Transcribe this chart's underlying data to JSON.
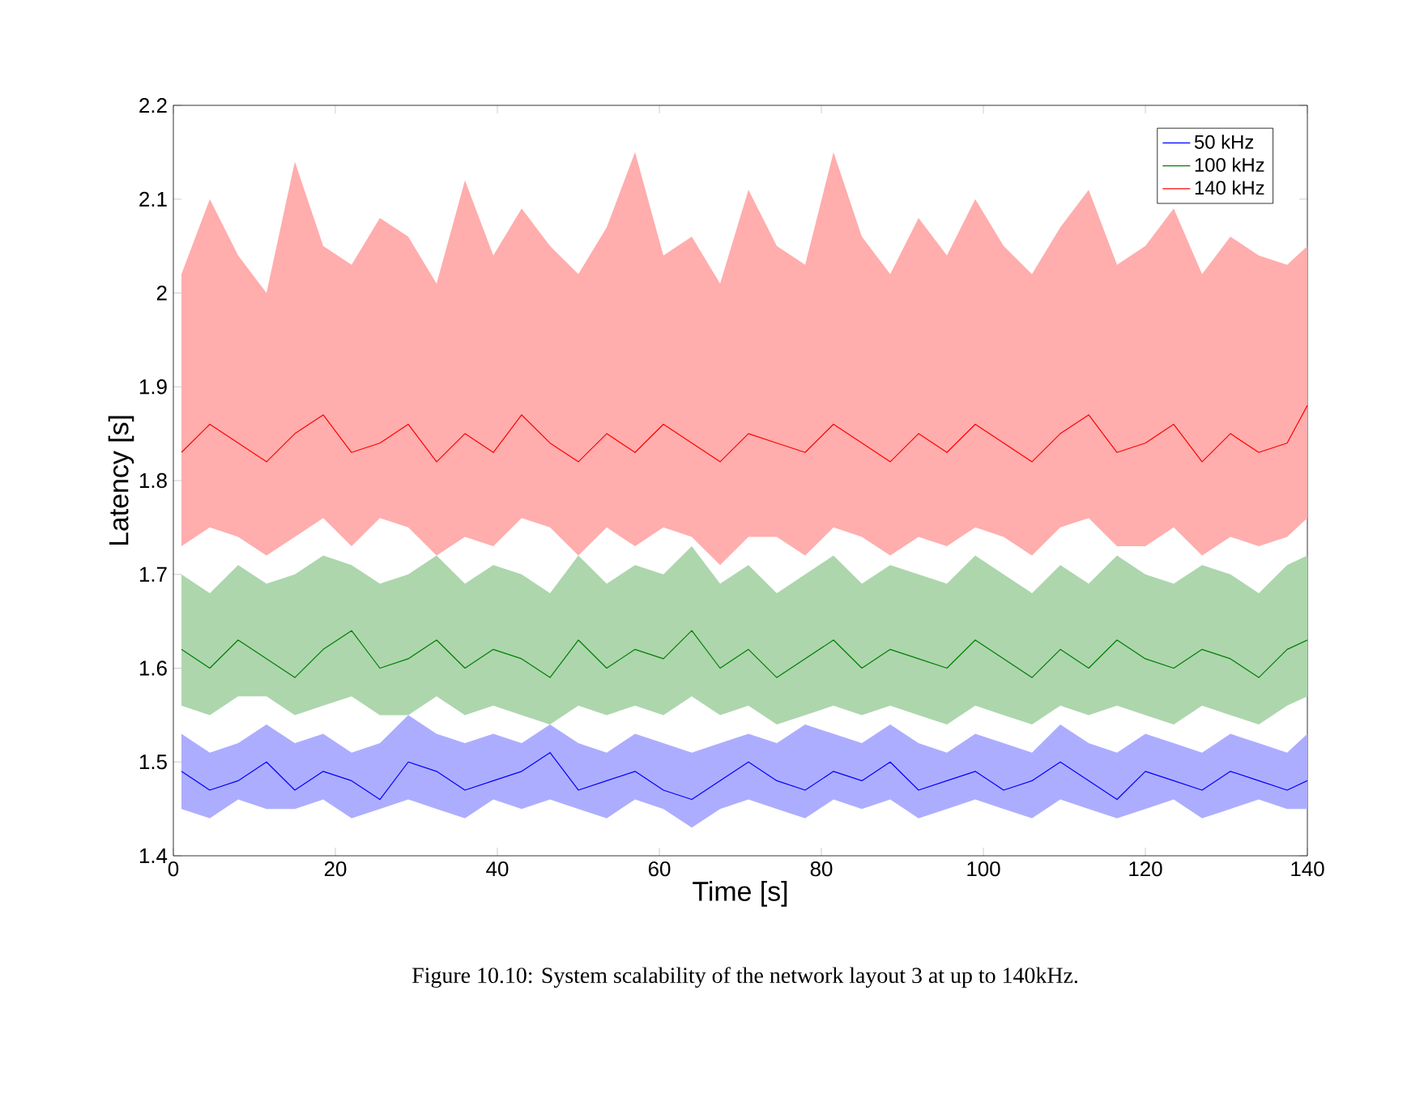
{
  "chart_data": {
    "type": "line",
    "xlabel": "Time [s]",
    "ylabel": "Latency [s]",
    "annotations": [
      "Figure 10.10:  System scalability of the network layout 3 at up to 140kHz."
    ],
    "x": [
      1,
      4.5,
      8,
      11.5,
      15,
      18.5,
      22,
      25.5,
      29,
      32.5,
      36,
      39.5,
      43,
      46.5,
      50,
      53.5,
      57,
      60.5,
      64,
      67.5,
      71,
      74.5,
      78,
      81.5,
      85,
      88.5,
      92,
      95.5,
      99,
      102.5,
      106,
      109.5,
      113,
      116.5,
      120,
      123.5,
      127,
      130.5,
      134,
      137.5,
      140
    ],
    "xlim": [
      0,
      140
    ],
    "xticks": [
      0,
      20,
      40,
      60,
      80,
      100,
      120,
      140
    ],
    "ylim": [
      1.4,
      2.2
    ],
    "yticks": [
      1.4,
      1.5,
      1.6,
      1.7,
      1.8,
      1.9,
      2,
      2.1,
      2.2
    ],
    "legend": "top right",
    "grid": false,
    "marker": "none",
    "line_style": "solid",
    "series": [
      {
        "name": "50 kHz",
        "color": "#0000ff",
        "values": [
          1.49,
          1.47,
          1.48,
          1.5,
          1.47,
          1.49,
          1.48,
          1.46,
          1.5,
          1.49,
          1.47,
          1.48,
          1.49,
          1.51,
          1.47,
          1.48,
          1.49,
          1.47,
          1.46,
          1.48,
          1.5,
          1.48,
          1.47,
          1.49,
          1.48,
          1.5,
          1.47,
          1.48,
          1.49,
          1.47,
          1.48,
          1.5,
          1.48,
          1.46,
          1.49,
          1.48,
          1.47,
          1.49,
          1.48,
          1.47,
          1.48
        ],
        "lower": [
          1.45,
          1.44,
          1.46,
          1.45,
          1.45,
          1.46,
          1.44,
          1.45,
          1.46,
          1.45,
          1.44,
          1.46,
          1.45,
          1.46,
          1.45,
          1.44,
          1.46,
          1.45,
          1.43,
          1.45,
          1.46,
          1.45,
          1.44,
          1.46,
          1.45,
          1.46,
          1.44,
          1.45,
          1.46,
          1.45,
          1.44,
          1.46,
          1.45,
          1.44,
          1.45,
          1.46,
          1.44,
          1.45,
          1.46,
          1.45,
          1.45
        ],
        "upper": [
          1.53,
          1.51,
          1.52,
          1.54,
          1.52,
          1.53,
          1.51,
          1.52,
          1.55,
          1.53,
          1.52,
          1.53,
          1.52,
          1.54,
          1.52,
          1.51,
          1.53,
          1.52,
          1.51,
          1.52,
          1.53,
          1.52,
          1.54,
          1.53,
          1.52,
          1.54,
          1.52,
          1.51,
          1.53,
          1.52,
          1.51,
          1.54,
          1.52,
          1.51,
          1.53,
          1.52,
          1.51,
          1.53,
          1.52,
          1.51,
          1.53
        ]
      },
      {
        "name": "100 kHz",
        "color": "#007f00",
        "values": [
          1.62,
          1.6,
          1.63,
          1.61,
          1.59,
          1.62,
          1.64,
          1.6,
          1.61,
          1.63,
          1.6,
          1.62,
          1.61,
          1.59,
          1.63,
          1.6,
          1.62,
          1.61,
          1.64,
          1.6,
          1.62,
          1.59,
          1.61,
          1.63,
          1.6,
          1.62,
          1.61,
          1.6,
          1.63,
          1.61,
          1.59,
          1.62,
          1.6,
          1.63,
          1.61,
          1.6,
          1.62,
          1.61,
          1.59,
          1.62,
          1.63
        ],
        "lower": [
          1.56,
          1.55,
          1.57,
          1.57,
          1.55,
          1.56,
          1.57,
          1.55,
          1.55,
          1.57,
          1.55,
          1.56,
          1.55,
          1.54,
          1.56,
          1.55,
          1.56,
          1.55,
          1.57,
          1.55,
          1.56,
          1.54,
          1.55,
          1.56,
          1.55,
          1.56,
          1.55,
          1.54,
          1.56,
          1.55,
          1.54,
          1.56,
          1.55,
          1.56,
          1.55,
          1.54,
          1.56,
          1.55,
          1.54,
          1.56,
          1.57
        ],
        "upper": [
          1.7,
          1.68,
          1.71,
          1.69,
          1.7,
          1.72,
          1.71,
          1.69,
          1.7,
          1.72,
          1.69,
          1.71,
          1.7,
          1.68,
          1.72,
          1.69,
          1.71,
          1.7,
          1.73,
          1.69,
          1.71,
          1.68,
          1.7,
          1.72,
          1.69,
          1.71,
          1.7,
          1.69,
          1.72,
          1.7,
          1.68,
          1.71,
          1.69,
          1.72,
          1.7,
          1.69,
          1.71,
          1.7,
          1.68,
          1.71,
          1.72
        ]
      },
      {
        "name": "140 kHz",
        "color": "#ff0000",
        "values": [
          1.83,
          1.86,
          1.84,
          1.82,
          1.85,
          1.87,
          1.83,
          1.84,
          1.86,
          1.82,
          1.85,
          1.83,
          1.87,
          1.84,
          1.82,
          1.85,
          1.83,
          1.86,
          1.84,
          1.82,
          1.85,
          1.84,
          1.83,
          1.86,
          1.84,
          1.82,
          1.85,
          1.83,
          1.86,
          1.84,
          1.82,
          1.85,
          1.87,
          1.83,
          1.84,
          1.86,
          1.82,
          1.85,
          1.83,
          1.84,
          1.88
        ],
        "lower": [
          1.73,
          1.75,
          1.74,
          1.72,
          1.74,
          1.76,
          1.73,
          1.76,
          1.75,
          1.72,
          1.74,
          1.73,
          1.76,
          1.75,
          1.72,
          1.75,
          1.73,
          1.75,
          1.74,
          1.71,
          1.74,
          1.74,
          1.72,
          1.75,
          1.74,
          1.72,
          1.74,
          1.73,
          1.75,
          1.74,
          1.72,
          1.75,
          1.76,
          1.73,
          1.73,
          1.75,
          1.72,
          1.74,
          1.73,
          1.74,
          1.76
        ],
        "upper": [
          2.02,
          2.1,
          2.04,
          2.0,
          2.14,
          2.05,
          2.03,
          2.08,
          2.06,
          2.01,
          2.12,
          2.04,
          2.09,
          2.05,
          2.02,
          2.07,
          2.15,
          2.04,
          2.06,
          2.01,
          2.11,
          2.05,
          2.03,
          2.15,
          2.06,
          2.02,
          2.08,
          2.04,
          2.1,
          2.05,
          2.02,
          2.07,
          2.11,
          2.03,
          2.05,
          2.09,
          2.02,
          2.06,
          2.04,
          2.03,
          2.05
        ]
      }
    ]
  }
}
